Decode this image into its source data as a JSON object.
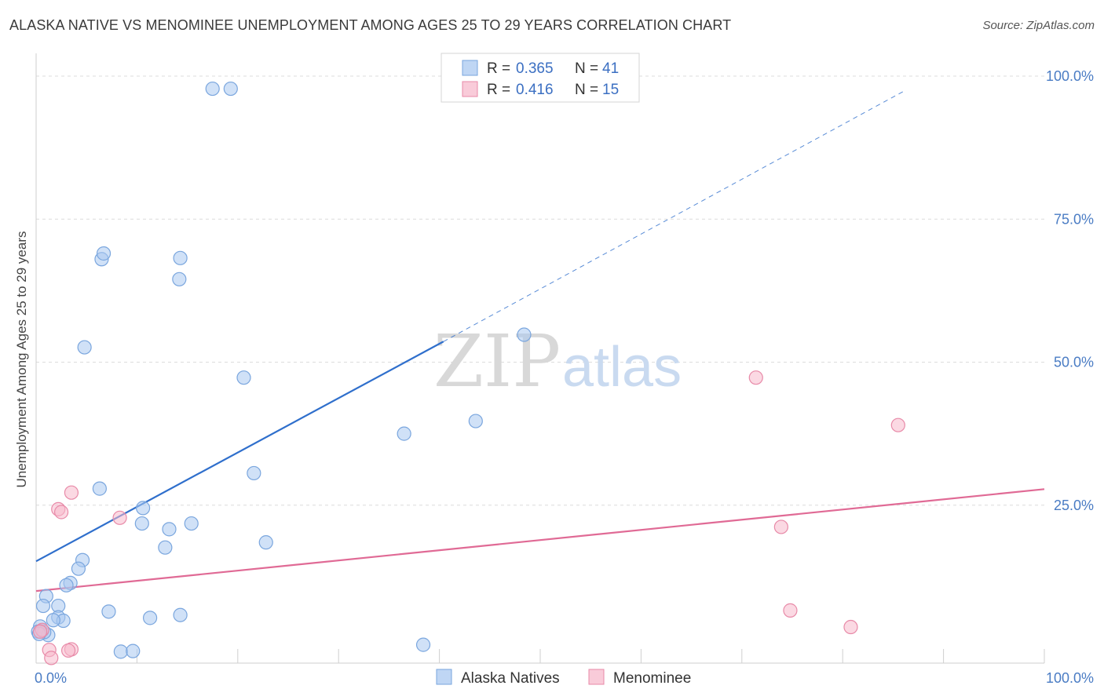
{
  "title": "ALASKA NATIVE VS MENOMINEE UNEMPLOYMENT AMONG AGES 25 TO 29 YEARS CORRELATION CHART",
  "source": "Source: ZipAtlas.com",
  "watermark": {
    "zip": "ZIP",
    "atlas": "atlas"
  },
  "chart_data": {
    "type": "scatter",
    "xlabel": "",
    "ylabel": "Unemployment Among Ages 25 to 29 years",
    "xlim": [
      0,
      100
    ],
    "ylim": [
      0,
      100
    ],
    "x_tick_labels": [
      "0.0%",
      "100.0%"
    ],
    "y_ticks": [
      {
        "value": 25,
        "label": "25.0%"
      },
      {
        "value": 50,
        "label": "50.0%"
      },
      {
        "value": 75,
        "label": "75.0%"
      },
      {
        "value": 100,
        "label": "100.0%"
      }
    ],
    "grid": true,
    "legend_placement": "top-center",
    "series": [
      {
        "name": "Alaska Natives",
        "color": "#a9c8f0",
        "stroke": "#7aa6de",
        "line_color": "#2f6fcc",
        "R": "0.365",
        "N": "41",
        "trend": {
          "x0": 0,
          "y0": 15.2,
          "x1": 40.4,
          "y1": 53.6,
          "dashed_to_x": 86.0,
          "dashed_to_y": 97.3
        },
        "points": [
          [
            17.5,
            97.8
          ],
          [
            19.3,
            97.8
          ],
          [
            6.5,
            68.0
          ],
          [
            6.7,
            69.0
          ],
          [
            14.3,
            68.2
          ],
          [
            14.2,
            64.5
          ],
          [
            4.8,
            52.6
          ],
          [
            20.6,
            47.3
          ],
          [
            48.4,
            54.8
          ],
          [
            43.6,
            39.7
          ],
          [
            36.5,
            37.5
          ],
          [
            21.6,
            30.6
          ],
          [
            6.3,
            27.9
          ],
          [
            10.6,
            24.5
          ],
          [
            10.5,
            21.8
          ],
          [
            13.2,
            20.8
          ],
          [
            15.4,
            21.8
          ],
          [
            12.8,
            17.6
          ],
          [
            22.8,
            18.5
          ],
          [
            4.6,
            15.4
          ],
          [
            4.2,
            13.9
          ],
          [
            3.4,
            11.4
          ],
          [
            3.0,
            11.0
          ],
          [
            1.0,
            9.1
          ],
          [
            2.2,
            7.4
          ],
          [
            0.7,
            7.4
          ],
          [
            7.2,
            6.4
          ],
          [
            11.3,
            5.3
          ],
          [
            14.3,
            5.8
          ],
          [
            2.2,
            5.4
          ],
          [
            2.7,
            4.8
          ],
          [
            1.7,
            4.9
          ],
          [
            0.6,
            3.1
          ],
          [
            0.4,
            3.8
          ],
          [
            0.2,
            2.9
          ],
          [
            1.2,
            2.3
          ],
          [
            0.8,
            2.8
          ],
          [
            8.4,
            -0.6
          ],
          [
            9.6,
            -0.5
          ],
          [
            38.4,
            0.6
          ],
          [
            0.3,
            2.5
          ]
        ]
      },
      {
        "name": "Menominee",
        "color": "#f7b9cc",
        "stroke": "#e88aa8",
        "line_color": "#e06a95",
        "R": "0.416",
        "N": "15",
        "trend": {
          "x0": 0,
          "y0": 10.0,
          "x1": 100,
          "y1": 27.8
        },
        "points": [
          [
            71.4,
            47.3
          ],
          [
            85.5,
            39.0
          ],
          [
            3.5,
            27.2
          ],
          [
            2.2,
            24.3
          ],
          [
            2.5,
            23.8
          ],
          [
            8.3,
            22.8
          ],
          [
            73.9,
            21.2
          ],
          [
            74.8,
            6.6
          ],
          [
            80.8,
            3.7
          ],
          [
            0.6,
            3.2
          ],
          [
            0.4,
            2.9
          ],
          [
            1.3,
            -0.3
          ],
          [
            3.5,
            -0.2
          ],
          [
            3.2,
            -0.4
          ],
          [
            1.5,
            -1.7
          ]
        ]
      }
    ]
  }
}
